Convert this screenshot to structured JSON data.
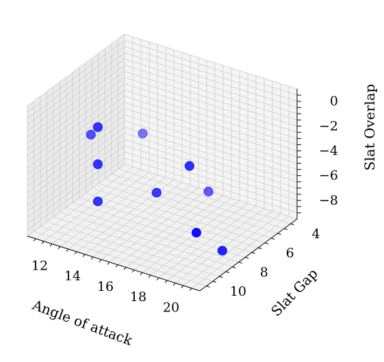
{
  "chart_data": {
    "type": "scatter",
    "projection": "3d",
    "xlabel": "Angle of attack",
    "ylabel": "Slat Gap",
    "zlabel": "Slat Overlap",
    "x_ticks": [
      "12",
      "14",
      "16",
      "18",
      "20"
    ],
    "y_ticks": [
      "4",
      "6",
      "8",
      "10"
    ],
    "z_ticks": [
      "−8",
      "−6",
      "−4",
      "−2",
      "0"
    ],
    "xlim": [
      10.5,
      21
    ],
    "ylim": [
      3.5,
      11
    ],
    "zlim": [
      -9.5,
      1
    ],
    "grid": true,
    "marker_color": "#0000ff",
    "points": [
      {
        "x": 14,
        "y": 10,
        "z": 0
      },
      {
        "x": 14,
        "y": 10,
        "z": -3
      },
      {
        "x": 14,
        "y": 10,
        "z": -6
      },
      {
        "x": 12,
        "y": 8,
        "z": -3
      },
      {
        "x": 12,
        "y": 4,
        "z": -6
      },
      {
        "x": 16,
        "y": 4,
        "z": -9
      },
      {
        "x": 16,
        "y": 8,
        "z": -6
      },
      {
        "x": 20,
        "y": 10,
        "z": -6
      },
      {
        "x": 20,
        "y": 8,
        "z": -9
      },
      {
        "x": 18,
        "y": 8,
        "z": -3
      }
    ]
  }
}
